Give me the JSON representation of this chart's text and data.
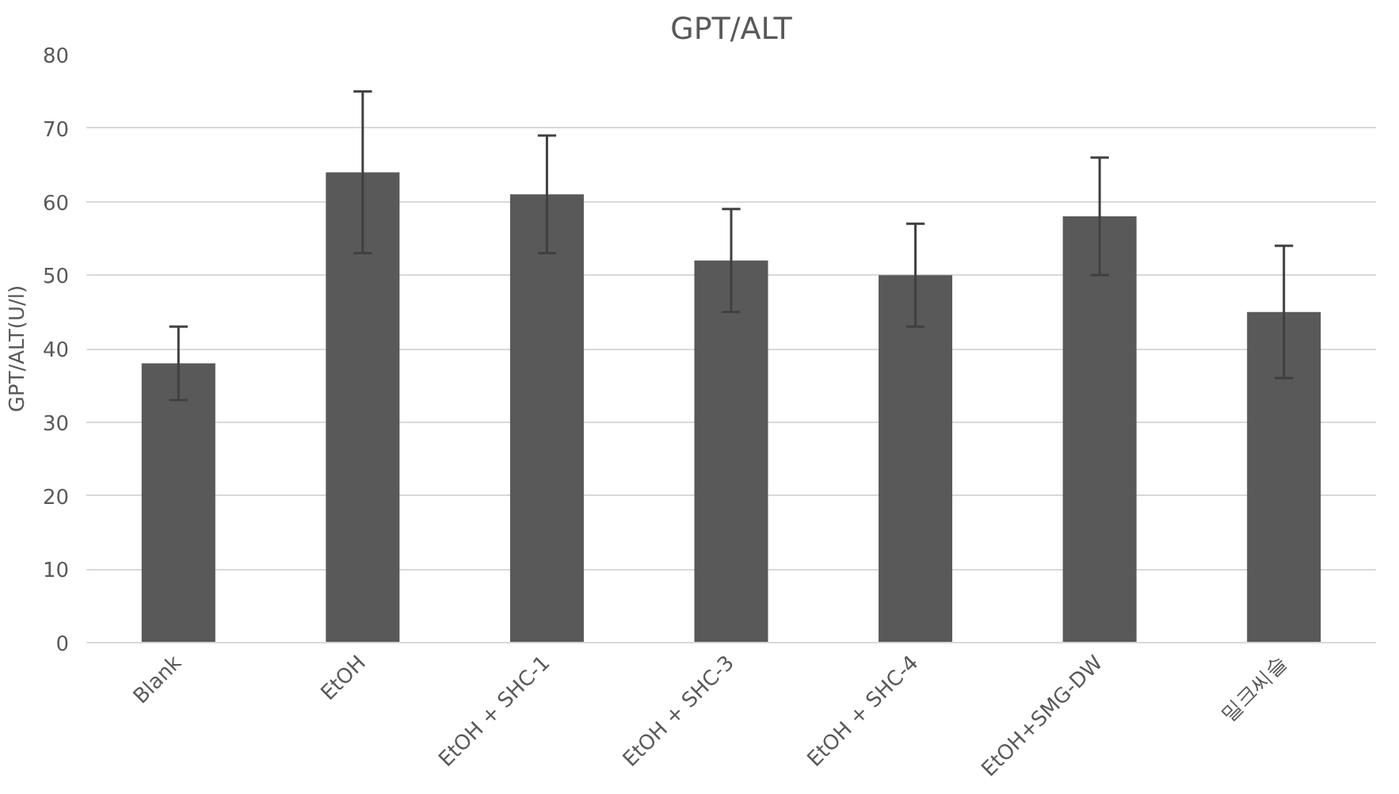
{
  "chart_data": {
    "type": "bar",
    "title": "GPT/ALT",
    "ylabel": "GPT/ALT(U/l)",
    "categories": [
      "Blank",
      "EtOH",
      "EtOH + SHC-1",
      "EtOH + SHC-3",
      "EtOH + SHC-4",
      "EtOH+SMG-DW",
      "밀크씨슬"
    ],
    "values": [
      38,
      64,
      61,
      52,
      50,
      58,
      45
    ],
    "errors": [
      5,
      11,
      8,
      7,
      7,
      8,
      9
    ],
    "color": "#595959",
    "ylim": [
      0,
      80
    ],
    "yticks": [
      0,
      10,
      20,
      30,
      40,
      50,
      60,
      70,
      80
    ],
    "grid": "y"
  }
}
